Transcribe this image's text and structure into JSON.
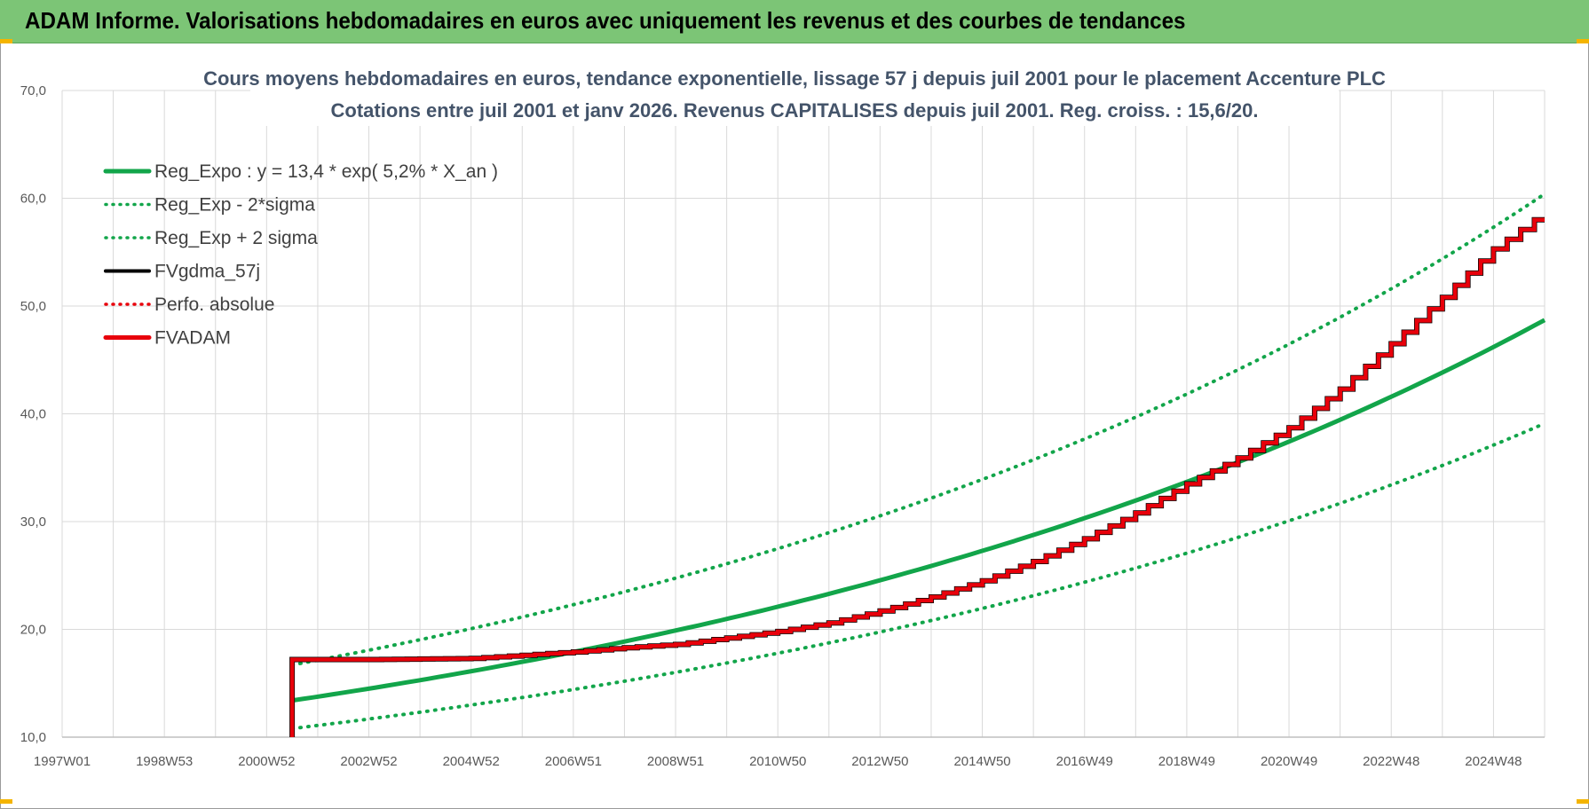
{
  "header": {
    "title": "ADAM Informe. Valorisations hebdomadaires en euros avec uniquement les revenus et des courbes de tendances"
  },
  "colors": {
    "header_bg": "#7cc576",
    "green": "#12a54a",
    "red": "#e8000b",
    "black": "#000000",
    "grid": "#d9d9d9"
  },
  "chart_data": {
    "type": "line",
    "title_line1": "Cours moyens hebdomadaires en euros, tendance exponentielle, lissage 57 j depuis juil 2001 pour le placement Accenture PLC",
    "title_line2": "Cotations entre juil 2001 et janv 2026. Revenus CAPITALISES depuis juil 2001. Reg. croiss. : 15,6/20.",
    "x_unit": "year",
    "xlim": [
      1997.0,
      2026.0
    ],
    "ylim": [
      10,
      70
    ],
    "y_ticks": [
      10,
      20,
      30,
      40,
      50,
      60,
      70
    ],
    "y_tick_labels": [
      "10,0",
      "20,0",
      "30,0",
      "40,0",
      "50,0",
      "60,0",
      "70,0"
    ],
    "x_tick_labels": [
      "1997W01",
      "1998W53",
      "2000W52",
      "2002W52",
      "2004W52",
      "2006W51",
      "2008W51",
      "2010W50",
      "2012W50",
      "2014W50",
      "2016W49",
      "2018W49",
      "2020W49",
      "2022W48",
      "2024W48"
    ],
    "x_tick_years": [
      1997.0,
      1999.0,
      2001.0,
      2003.0,
      2005.0,
      2007.0,
      2009.0,
      2011.0,
      2013.0,
      2015.0,
      2017.0,
      2019.0,
      2021.0,
      2023.0,
      2025.0
    ],
    "legend": [
      {
        "label": "Reg_Expo : y = 13,4 * exp( 5,2% *  X_an )",
        "style": "solid-thick",
        "color": "#12a54a"
      },
      {
        "label": "Reg_Exp - 2*sigma",
        "style": "dotted",
        "color": "#12a54a"
      },
      {
        "label": "Reg_Exp + 2 sigma",
        "style": "dotted",
        "color": "#12a54a"
      },
      {
        "label": "FVgdma_57j",
        "style": "solid",
        "color": "#000000"
      },
      {
        "label": "Perfo. absolue",
        "style": "dotted",
        "color": "#e8000b"
      },
      {
        "label": "FVADAM",
        "style": "solid-thick",
        "color": "#e8000b"
      }
    ],
    "series": [
      {
        "name": "Reg_Expo",
        "x": [
          2001.5,
          2003,
          2005,
          2007,
          2009,
          2011,
          2013,
          2015,
          2017,
          2019,
          2021,
          2023,
          2025,
          2026
        ],
        "values": [
          13.4,
          14.5,
          16.1,
          17.9,
          19.9,
          22.1,
          24.6,
          27.3,
          30.4,
          33.7,
          37.5,
          41.7,
          46.3,
          48.7
        ]
      },
      {
        "name": "Reg_Exp - 2*sigma",
        "x": [
          2001.5,
          2003,
          2005,
          2007,
          2009,
          2011,
          2013,
          2015,
          2017,
          2019,
          2021,
          2023,
          2025,
          2026
        ],
        "values": [
          10.8,
          11.6,
          12.9,
          14.3,
          15.9,
          17.7,
          19.7,
          21.9,
          24.4,
          27.1,
          30.1,
          33.4,
          37.1,
          39.1
        ]
      },
      {
        "name": "Reg_Exp + 2 sigma",
        "x": [
          2001.5,
          2003,
          2005,
          2007,
          2009,
          2011,
          2013,
          2015,
          2017,
          2019,
          2021,
          2023,
          2025,
          2026
        ],
        "values": [
          16.7,
          18.0,
          19.9,
          22.2,
          24.7,
          27.4,
          30.5,
          33.9,
          37.7,
          41.9,
          46.5,
          51.7,
          57.4,
          60.4
        ]
      },
      {
        "name": "FVADAM",
        "x": [
          2001.5,
          2001.5,
          2003,
          2005,
          2006,
          2007,
          2008,
          2009,
          2010,
          2011,
          2012,
          2013,
          2014,
          2015,
          2016,
          2017,
          2018,
          2019,
          2020,
          2021,
          2022,
          2023,
          2024,
          2025,
          2025.8,
          2026
        ],
        "values": [
          10.0,
          17.2,
          17.2,
          17.3,
          17.6,
          17.9,
          18.3,
          18.6,
          19.2,
          19.8,
          20.6,
          21.7,
          23.0,
          24.5,
          26.3,
          28.4,
          30.8,
          33.5,
          35.9,
          38.7,
          42.3,
          46.5,
          50.8,
          55.3,
          58.0,
          58.0
        ]
      }
    ]
  }
}
